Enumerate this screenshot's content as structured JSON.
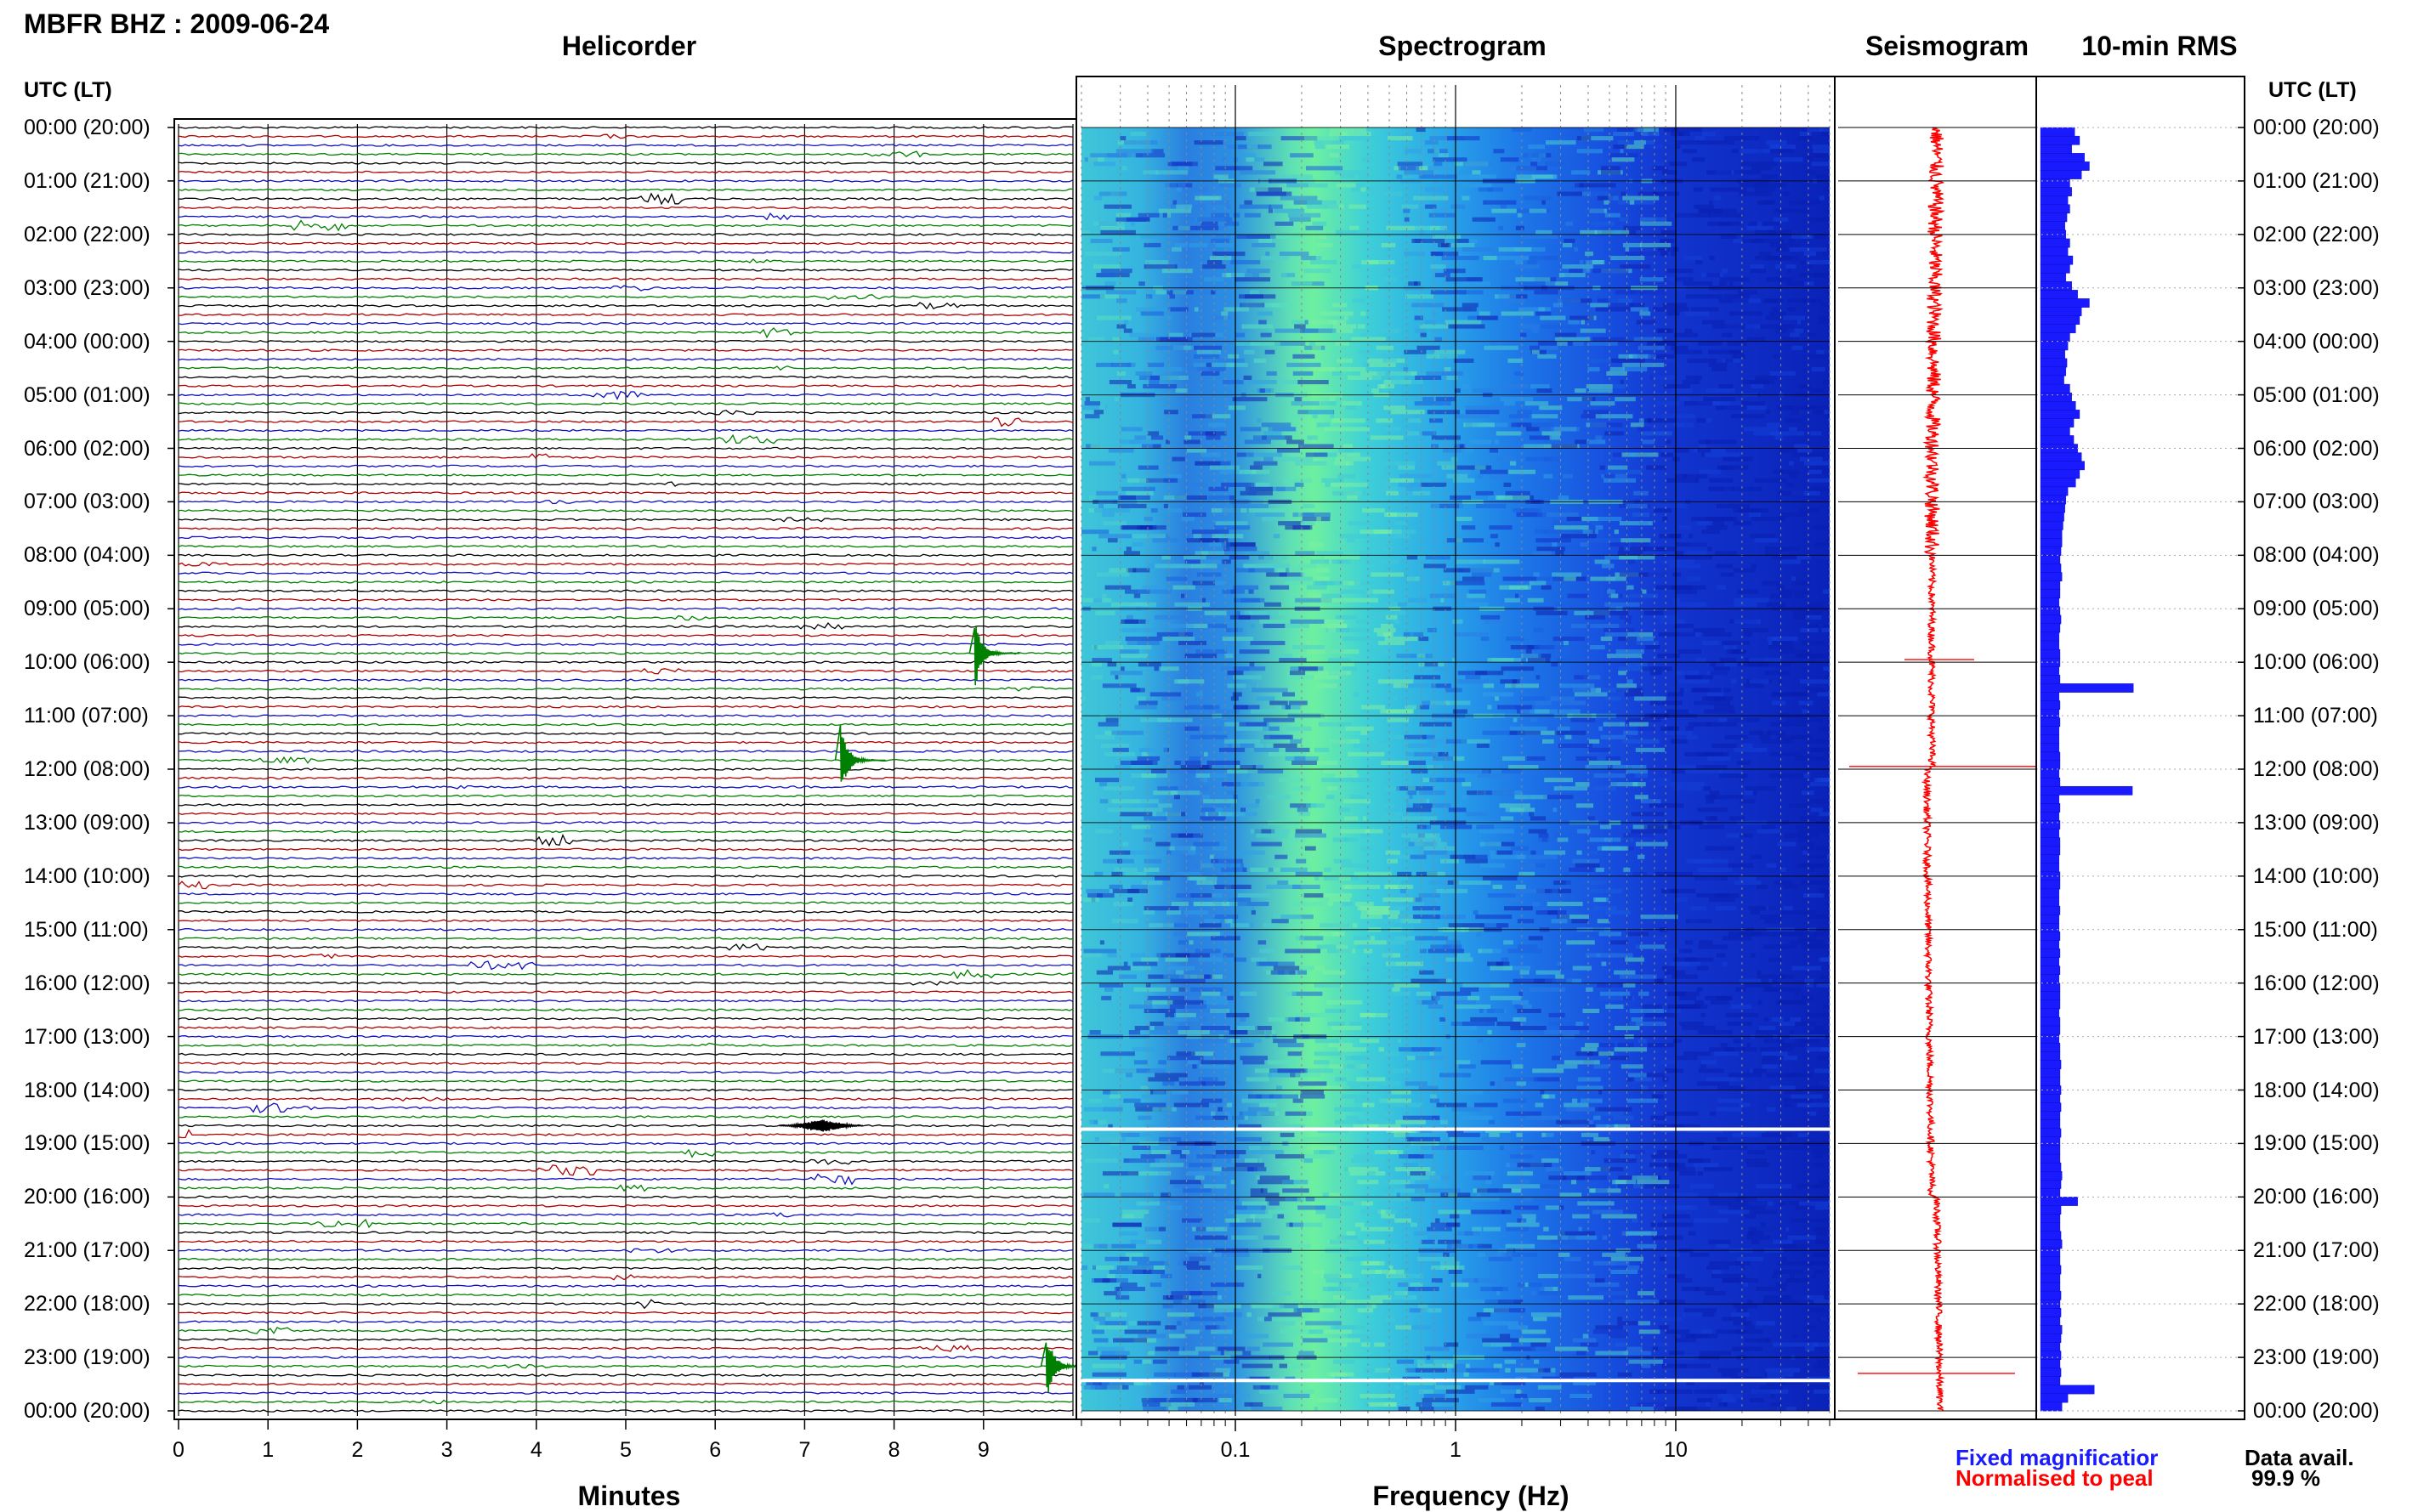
{
  "station_title": "MBFR BHZ : 2009-06-24",
  "panels": {
    "helicorder": "Helicorder",
    "spectrogram": "Spectrogram",
    "seismogram": "Seismogram",
    "rms": "10-min RMS"
  },
  "time_axis_header": "UTC (LT)",
  "time_labels": [
    "00:00 (20:00)",
    "01:00 (21:00)",
    "02:00 (22:00)",
    "03:00 (23:00)",
    "04:00 (00:00)",
    "05:00 (01:00)",
    "06:00 (02:00)",
    "07:00 (03:00)",
    "08:00 (04:00)",
    "09:00 (05:00)",
    "10:00 (06:00)",
    "11:00 (07:00)",
    "12:00 (08:00)",
    "13:00 (09:00)",
    "14:00 (10:00)",
    "15:00 (11:00)",
    "16:00 (12:00)",
    "17:00 (13:00)",
    "18:00 (14:00)",
    "19:00 (15:00)",
    "20:00 (16:00)",
    "21:00 (17:00)",
    "22:00 (18:00)",
    "23:00 (19:00)",
    "00:00 (20:00)"
  ],
  "x_axes": {
    "helicorder_label": "Minutes",
    "helicorder_ticks": [
      "0",
      "1",
      "2",
      "3",
      "4",
      "5",
      "6",
      "7",
      "8",
      "9"
    ],
    "spectrogram_label": "Frequency (Hz)",
    "spectrogram_ticks": [
      "0.1",
      "1",
      "10"
    ]
  },
  "legend": {
    "fixed": "Fixed magnificatior",
    "normalised": "Normalised to peal",
    "fixed_color": "#1a1aff",
    "normalised_color": "#ff0000"
  },
  "data_avail": {
    "label": "Data avail.",
    "value": "99.9 %"
  },
  "colors": {
    "trace_cycle": [
      "#000000",
      "#b00000",
      "#1010c0",
      "#008000"
    ],
    "rms_bar": "#1a1aff",
    "seismogram": "#ff0000"
  },
  "chart_data": {
    "type": "heatmap",
    "title": "MBFR BHZ : 2009-06-24",
    "ylabel": "UTC (LT)",
    "ylim": [
      "00:00",
      "24:00"
    ],
    "helicorder": {
      "rows_per_hour": 6,
      "row_minutes": 10,
      "xlim": [
        0,
        10
      ],
      "xlabel": "Minutes",
      "events": [
        {
          "time_utc": "09:50",
          "minute": 8.9,
          "amplitude": "large"
        },
        {
          "time_utc": "11:50",
          "minute": 7.4,
          "amplitude": "large"
        },
        {
          "time_utc": "18:40",
          "minute": 7.1,
          "amplitude": "medium"
        },
        {
          "time_utc": "23:10",
          "minute": 9.7,
          "amplitude": "large"
        }
      ]
    },
    "spectrogram": {
      "xlabel": "Frequency (Hz)",
      "xscale": "log",
      "xlim": [
        0.02,
        50
      ],
      "peak_band_hz": [
        0.2,
        0.5
      ]
    },
    "rms_10min": {
      "scale_max": 1,
      "values": [
        0.35,
        0.4,
        0.32,
        0.45,
        0.5,
        0.42,
        0.3,
        0.32,
        0.28,
        0.3,
        0.27,
        0.25,
        0.26,
        0.3,
        0.28,
        0.33,
        0.3,
        0.26,
        0.32,
        0.38,
        0.5,
        0.42,
        0.4,
        0.36,
        0.3,
        0.28,
        0.25,
        0.27,
        0.26,
        0.24,
        0.3,
        0.32,
        0.36,
        0.4,
        0.34,
        0.3,
        0.34,
        0.38,
        0.42,
        0.45,
        0.4,
        0.36,
        0.28,
        0.26,
        0.25,
        0.24,
        0.23,
        0.22,
        0.22,
        0.21,
        0.2,
        0.21,
        0.22,
        0.2,
        0.2,
        0.19,
        0.2,
        0.21,
        0.2,
        0.19,
        0.19,
        0.2,
        0.2,
        0.19,
        0.2,
        0.95,
        0.19,
        0.2,
        0.19,
        0.2,
        0.19,
        0.19,
        0.19,
        0.2,
        0.2,
        0.19,
        0.2,
        0.94,
        0.19,
        0.2,
        0.19,
        0.2,
        0.19,
        0.2,
        0.2,
        0.19,
        0.19,
        0.2,
        0.2,
        0.19,
        0.19,
        0.2,
        0.19,
        0.19,
        0.2,
        0.19,
        0.2,
        0.19,
        0.2,
        0.19,
        0.2,
        0.2,
        0.2,
        0.19,
        0.2,
        0.2,
        0.19,
        0.2,
        0.2,
        0.21,
        0.2,
        0.2,
        0.21,
        0.2,
        0.21,
        0.2,
        0.2,
        0.21,
        0.2,
        0.2,
        0.2,
        0.21,
        0.22,
        0.21,
        0.2,
        0.38,
        0.21,
        0.2,
        0.2,
        0.21,
        0.22,
        0.2,
        0.2,
        0.21,
        0.2,
        0.2,
        0.21,
        0.2,
        0.21,
        0.2,
        0.22,
        0.21,
        0.2,
        0.21,
        0.2,
        0.21,
        0.2,
        0.55,
        0.28,
        0.22
      ]
    }
  }
}
